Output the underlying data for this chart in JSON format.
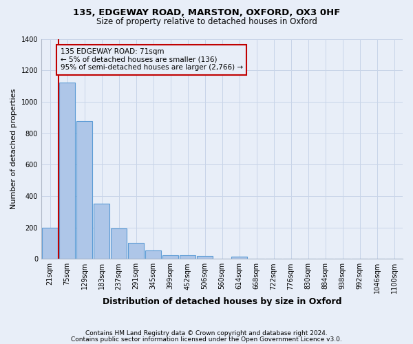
{
  "title1": "135, EDGEWAY ROAD, MARSTON, OXFORD, OX3 0HF",
  "title2": "Size of property relative to detached houses in Oxford",
  "xlabel": "Distribution of detached houses by size in Oxford",
  "ylabel": "Number of detached properties",
  "categories": [
    "21sqm",
    "75sqm",
    "129sqm",
    "183sqm",
    "237sqm",
    "291sqm",
    "345sqm",
    "399sqm",
    "452sqm",
    "506sqm",
    "560sqm",
    "614sqm",
    "668sqm",
    "722sqm",
    "776sqm",
    "830sqm",
    "884sqm",
    "938sqm",
    "992sqm",
    "1046sqm",
    "1100sqm"
  ],
  "bar_heights": [
    197,
    1120,
    875,
    350,
    193,
    100,
    53,
    24,
    22,
    18,
    0,
    13,
    0,
    0,
    0,
    0,
    0,
    0,
    0,
    0,
    0
  ],
  "bar_color": "#aec6e8",
  "bar_edge_color": "#5b9bd5",
  "vline_color": "#c00000",
  "annotation_text": "135 EDGEWAY ROAD: 71sqm\n← 5% of detached houses are smaller (136)\n95% of semi-detached houses are larger (2,766) →",
  "annotation_box_color": "#c00000",
  "ylim": [
    0,
    1400
  ],
  "yticks": [
    0,
    200,
    400,
    600,
    800,
    1000,
    1200,
    1400
  ],
  "grid_color": "#c8d4e8",
  "background_color": "#e8eef8",
  "footnote1": "Contains HM Land Registry data © Crown copyright and database right 2024.",
  "footnote2": "Contains public sector information licensed under the Open Government Licence v3.0."
}
